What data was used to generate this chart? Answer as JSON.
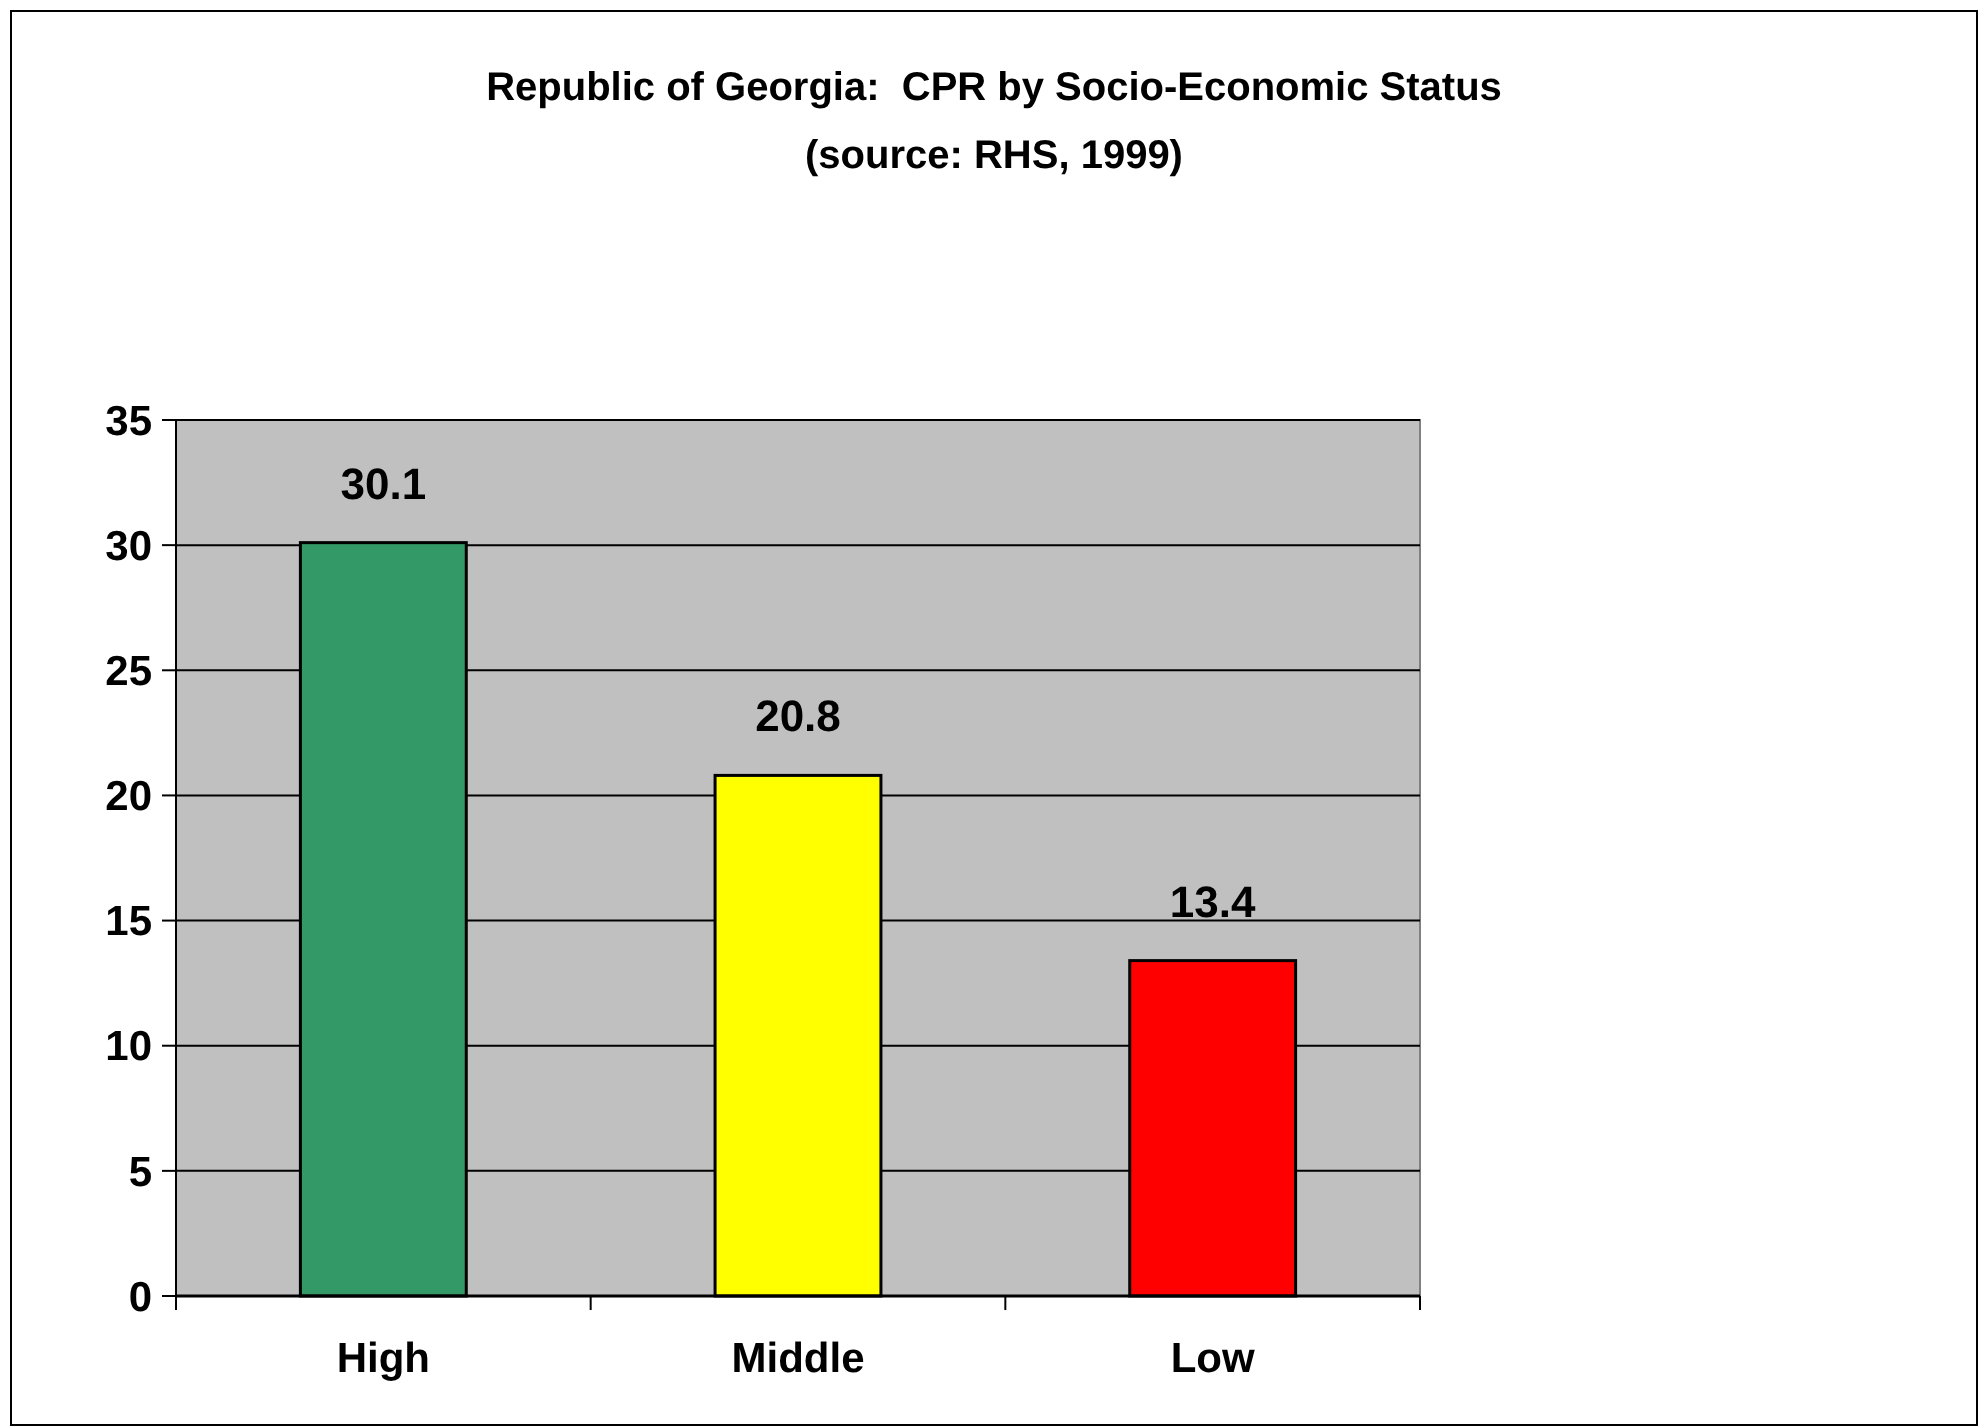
{
  "chart_data": {
    "type": "bar",
    "title": "Republic of Georgia:  CPR by Socio-Economic Status",
    "subtitle": "(source: RHS, 1999)",
    "categories": [
      "High",
      "Middle",
      "Low"
    ],
    "values": [
      30.1,
      20.8,
      13.4
    ],
    "colors": [
      "#339966",
      "#ffff00",
      "#ff0000"
    ],
    "ylim": [
      0,
      35
    ],
    "yticks": [
      0,
      5,
      10,
      15,
      20,
      25,
      30,
      35
    ],
    "grid": "y",
    "data_labels": true
  }
}
